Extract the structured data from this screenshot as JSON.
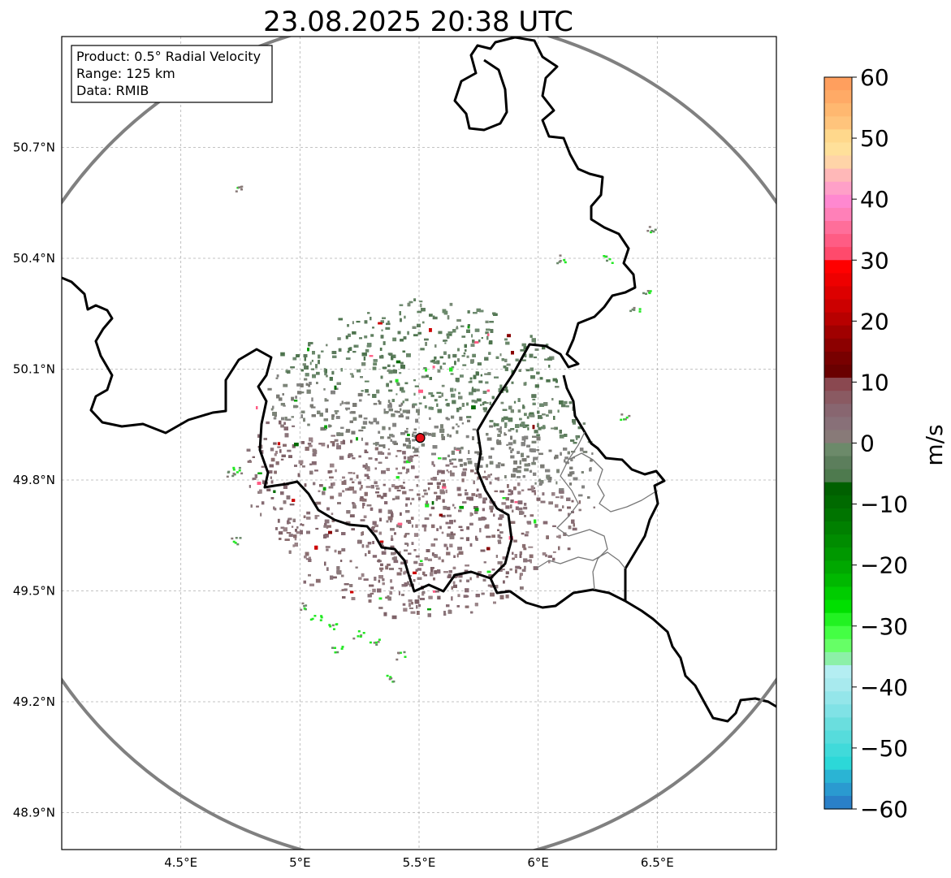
{
  "title": "23.08.2025 20:38 UTC",
  "info_box": {
    "line1": "Product: 0.5° Radial Velocity",
    "line2": "Range: 125 km",
    "line3": "Data: RMIB"
  },
  "map": {
    "lon_range": [
      4.0,
      7.0
    ],
    "lat_range": [
      48.8,
      51.0
    ],
    "lon_ticks": [
      {
        "value": 4.5,
        "label": "4.5°E"
      },
      {
        "value": 5.0,
        "label": "5°E"
      },
      {
        "value": 5.5,
        "label": "5.5°E"
      },
      {
        "value": 6.0,
        "label": "6°E"
      },
      {
        "value": 6.5,
        "label": "6.5°E"
      }
    ],
    "lat_ticks": [
      {
        "value": 50.7,
        "label": "50.7°N"
      },
      {
        "value": 50.4,
        "label": "50.4°N"
      },
      {
        "value": 50.1,
        "label": "50.1°N"
      },
      {
        "value": 49.8,
        "label": "49.8°N"
      },
      {
        "value": 49.5,
        "label": "49.5°N"
      },
      {
        "value": 49.2,
        "label": "49.2°N"
      },
      {
        "value": 48.9,
        "label": "48.9°N"
      }
    ],
    "grid": true,
    "radar_site": {
      "lon": 5.505,
      "lat": 49.914,
      "color": "#e8101a"
    },
    "range_km": 125,
    "range_ring_color": "#808080"
  },
  "colorbar": {
    "unit": "m/s",
    "min": -60,
    "max": 60,
    "tick_labels": [
      "60",
      "50",
      "40",
      "30",
      "20",
      "10",
      "0",
      "−10",
      "−20",
      "−30",
      "−40",
      "−50",
      "−60"
    ],
    "colors_top_to_bottom": [
      "#ff9f5e",
      "#ffaa66",
      "#ffb870",
      "#ffc47c",
      "#ffd88c",
      "#ffe09a",
      "#ffd4a8",
      "#ffb8b8",
      "#ffa0c8",
      "#ff88d0",
      "#ff80b8",
      "#ff6e9a",
      "#ff5c84",
      "#ff4a6c",
      "#ff0000",
      "#ee0000",
      "#dd0000",
      "#cc0000",
      "#b80000",
      "#a00000",
      "#8c0000",
      "#780000",
      "#6a0000",
      "#8a4850",
      "#8a5a62",
      "#886670",
      "#887078",
      "#887a78",
      "#6c8a6a",
      "#5c7e5c",
      "#4e7a4e",
      "#006000",
      "#006a00",
      "#007400",
      "#008000",
      "#008c00",
      "#009800",
      "#00a800",
      "#00b800",
      "#00cc00",
      "#00e000",
      "#22f222",
      "#44ff44",
      "#66ff66",
      "#8cf0a8",
      "#b4eef2",
      "#a8eaee",
      "#94e6ea",
      "#80e2e6",
      "#6adede",
      "#56dcdc",
      "#40dada",
      "#2cd8d8",
      "#2ab4d4",
      "#2a9ad0",
      "#2a80c8"
    ]
  }
}
